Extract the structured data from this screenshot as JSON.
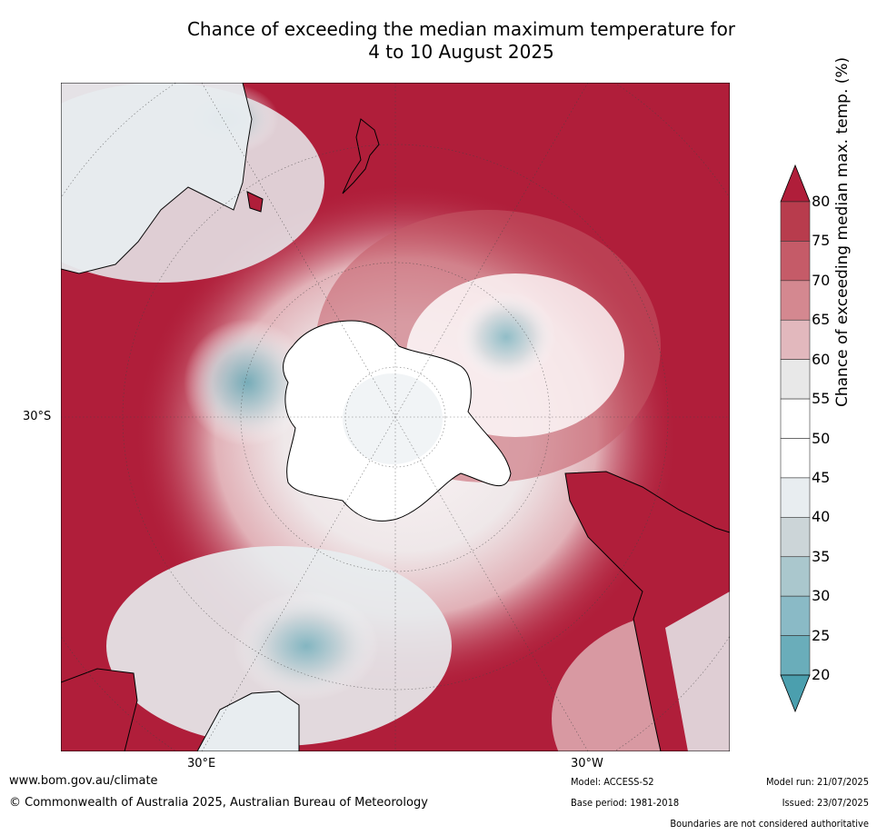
{
  "title_line1": "Chance of exceeding the median maximum temperature for",
  "title_line2": "4 to 10 August 2025",
  "axis_labels": {
    "lat_30s": "30°S",
    "lon_30e": "30°E",
    "lon_30w": "30°W"
  },
  "colorbar": {
    "label": "Chance of exceeding median max. temp. (%)",
    "ticks": [
      "20",
      "25",
      "30",
      "35",
      "40",
      "45",
      "50",
      "55",
      "60",
      "65",
      "70",
      "75",
      "80"
    ],
    "colors": [
      "#4b9fae",
      "#6aadba",
      "#8abac6",
      "#aac7cd",
      "#ccd5d8",
      "#e8edf0",
      "#ffffff",
      "#ffffff",
      "#e8e8e8",
      "#e2b8bd",
      "#d48890",
      "#c55b68",
      "#b83c4d",
      "#b01e3a"
    ]
  },
  "footer": {
    "website": "www.bom.gov.au/climate",
    "copyright": "© Commonwealth of Australia 2025, Australian Bureau of Meteorology",
    "model": "Model: ACCESS-S2",
    "base_period": "Base period: 1981-2018",
    "model_run": "Model run: 21/07/2025",
    "issued": "Issued: 23/07/2025",
    "disclaimer": "Boundaries are not considered authoritative"
  }
}
